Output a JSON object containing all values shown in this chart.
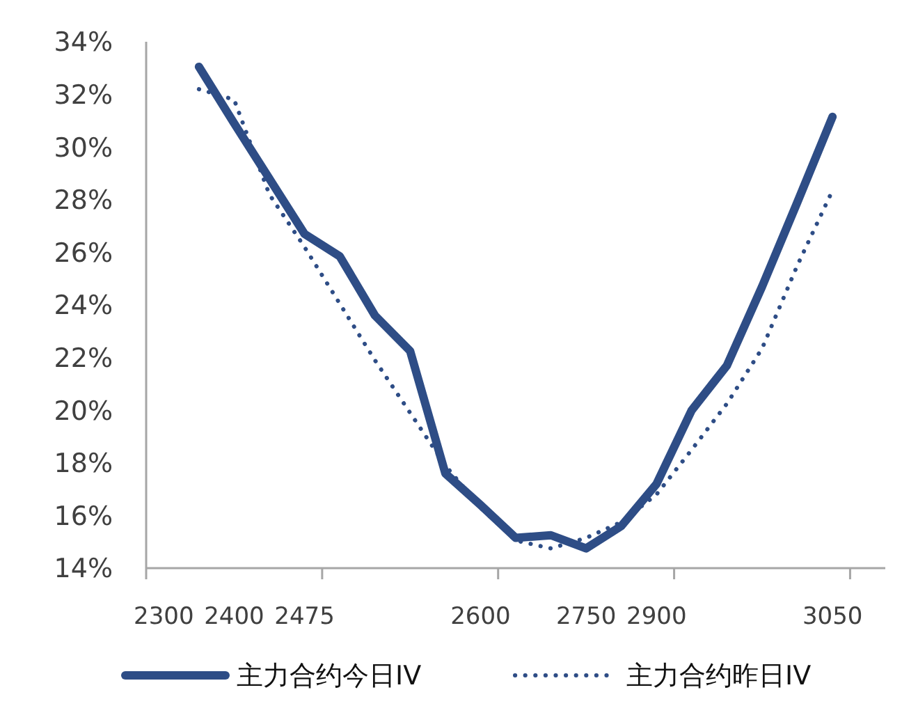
{
  "chart_data": {
    "type": "line",
    "categories": [
      "2300",
      null,
      "2400",
      null,
      "2475",
      null,
      null,
      null,
      null,
      "2600",
      null,
      null,
      "2750",
      null,
      "2900",
      null,
      null,
      null,
      null,
      "3050",
      null
    ],
    "series": [
      {
        "name": "主力合约今日IV",
        "color": "#2e4d86",
        "line_style": "solid",
        "values": [
          null,
          33.05,
          30.9,
          28.8,
          26.7,
          25.85,
          23.6,
          22.25,
          17.6,
          16.4,
          15.15,
          15.25,
          14.75,
          15.6,
          17.2,
          20.0,
          21.7,
          24.7,
          27.9,
          31.15,
          null
        ]
      },
      {
        "name": "主力合约昨日IV",
        "color": "#2e4d86",
        "line_style": "dotted",
        "values": [
          null,
          32.2,
          31.8,
          28.2,
          26.2,
          24.05,
          21.9,
          19.9,
          17.9,
          16.3,
          15.05,
          14.75,
          15.15,
          15.75,
          16.8,
          18.5,
          20.25,
          22.35,
          25.5,
          28.35,
          null
        ]
      }
    ],
    "ylim": [
      14,
      34
    ],
    "yticks": [
      {
        "value": 14,
        "label": "14%"
      },
      {
        "value": 16,
        "label": "16%"
      },
      {
        "value": 18,
        "label": "18%"
      },
      {
        "value": 20,
        "label": "20%"
      },
      {
        "value": 22,
        "label": "22%"
      },
      {
        "value": 24,
        "label": "24%"
      },
      {
        "value": 26,
        "label": "26%"
      },
      {
        "value": 28,
        "label": "28%"
      },
      {
        "value": 30,
        "label": "30%"
      },
      {
        "value": 32,
        "label": "32%"
      },
      {
        "value": 34,
        "label": "34%"
      }
    ],
    "grid": false,
    "legend": "bottom",
    "marker": "none"
  }
}
